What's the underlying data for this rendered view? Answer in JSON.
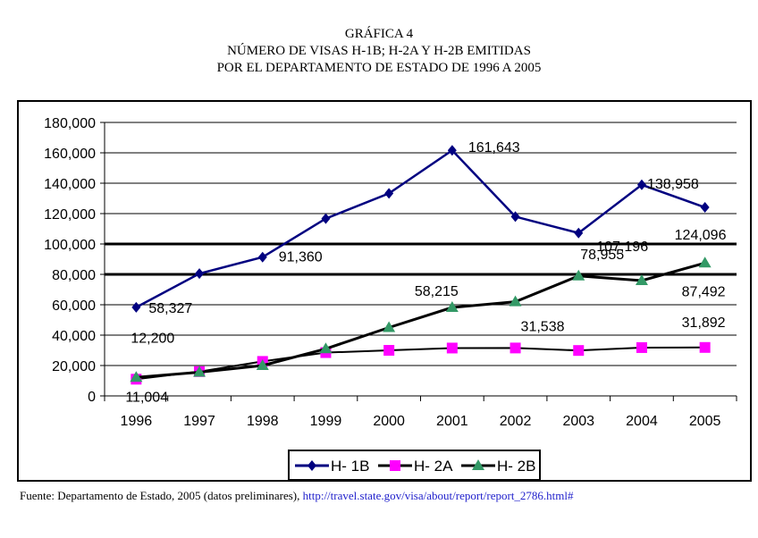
{
  "title_lines": [
    "GRÁFICA 4",
    "NÚMERO DE VISAS H-1B; H-2A Y H-2B EMITIDAS",
    "POR EL DEPARTAMENTO DE ESTADO DE 1996 A 2005"
  ],
  "source": {
    "text": "Fuente: Departamento de Estado, 2005 (datos preliminares), ",
    "link": "http://travel.state.gov/visa/about/report/report_2786.html#"
  },
  "chart_data": {
    "type": "line",
    "title": "NÚMERO DE VISAS H-1B; H-2A Y H-2B EMITIDAS POR EL DEPARTAMENTO DE ESTADO DE 1996 A 2005",
    "categories": [
      "1996",
      "1997",
      "1998",
      "1999",
      "2000",
      "2001",
      "2002",
      "2003",
      "2004",
      "2005"
    ],
    "ylim": [
      0,
      180000
    ],
    "yticks": [
      "0",
      "20,000",
      "40,000",
      "60,000",
      "80,000",
      "100,000",
      "120,000",
      "140,000",
      "160,000",
      "180,000"
    ],
    "grid": true,
    "legend": "bottom",
    "series": [
      {
        "name": "H- 1B",
        "color": "#000080",
        "marker": "diamond",
        "values": [
          58327,
          80500,
          91360,
          116700,
          133300,
          161643,
          118000,
          107196,
          138958,
          124096
        ]
      },
      {
        "name": "H- 2A",
        "color": "#ff00ff",
        "marker": "square",
        "values": [
          11004,
          16000,
          22700,
          28500,
          30000,
          31500,
          31538,
          29900,
          31800,
          31892
        ]
      },
      {
        "name": "H- 2B",
        "color": "#339966",
        "marker": "triangle",
        "values": [
          12200,
          15600,
          20000,
          31000,
          45000,
          58215,
          62000,
          78955,
          75900,
          87492
        ]
      }
    ],
    "data_labels": [
      {
        "series": 0,
        "year": "1996",
        "text": "58,327"
      },
      {
        "series": 0,
        "year": "1998",
        "text": "91,360"
      },
      {
        "series": 0,
        "year": "2001",
        "text": "161,643"
      },
      {
        "series": 0,
        "year": "2003",
        "text": "107,196"
      },
      {
        "series": 0,
        "year": "2004",
        "text": "138,958"
      },
      {
        "series": 0,
        "year": "2005",
        "text": "124,096"
      },
      {
        "series": 1,
        "year": "1996",
        "text": "11,004"
      },
      {
        "series": 1,
        "year": "2002",
        "text": "31,538"
      },
      {
        "series": 1,
        "year": "2005",
        "text": "31,892"
      },
      {
        "series": 2,
        "year": "1996",
        "text": "12,200"
      },
      {
        "series": 2,
        "year": "2001",
        "text": "58,215"
      },
      {
        "series": 2,
        "year": "2003",
        "text": "78,955"
      },
      {
        "series": 2,
        "year": "2005",
        "text": "87,492"
      }
    ]
  }
}
